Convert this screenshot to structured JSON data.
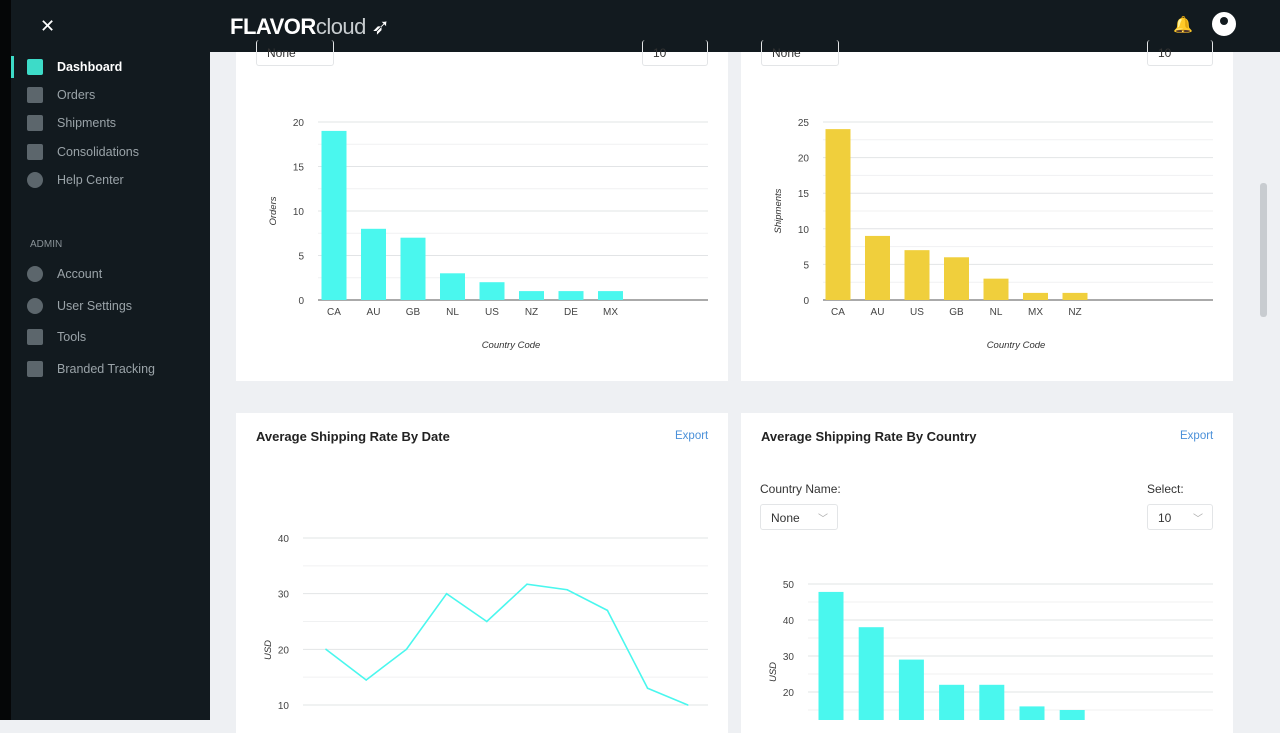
{
  "brand": {
    "logo_bold": "FLAVOR",
    "logo_light": "cloud"
  },
  "sidebar": {
    "items": [
      {
        "label": "Dashboard",
        "icon": "dashboard-icon",
        "active": true
      },
      {
        "label": "Orders",
        "icon": "download-icon"
      },
      {
        "label": "Shipments",
        "icon": "shipment-icon"
      },
      {
        "label": "Consolidations",
        "icon": "stack-icon"
      },
      {
        "label": "Help Center",
        "icon": "help-icon"
      }
    ],
    "admin_heading": "ADMIN",
    "admin_items": [
      {
        "label": "Account",
        "icon": "user-icon"
      },
      {
        "label": "User Settings",
        "icon": "gear-icon"
      },
      {
        "label": "Tools",
        "icon": "tools-icon"
      },
      {
        "label": "Branded Tracking",
        "icon": "tracking-icon"
      }
    ]
  },
  "panels": {
    "orders": {
      "filter_value": "None",
      "select_value": "10"
    },
    "shipments": {
      "filter_value": "None",
      "select_value": "10"
    },
    "rate_by_date": {
      "title": "Average Shipping Rate By Date",
      "export": "Export"
    },
    "rate_by_country": {
      "title": "Average Shipping Rate By Country",
      "export": "Export",
      "country_label": "Country Name:",
      "country_value": "None",
      "select_label": "Select:",
      "select_value": "10"
    }
  },
  "colors": {
    "accent": "#3ddbc8",
    "cyan": "#4af7ee",
    "yellow": "#f0cf3c"
  },
  "chart_data": [
    {
      "type": "bar",
      "categories": [
        "CA",
        "AU",
        "GB",
        "NL",
        "US",
        "NZ",
        "DE",
        "MX"
      ],
      "values": [
        19,
        8,
        7,
        3,
        2,
        1,
        1,
        1
      ],
      "xlabel": "Country Code",
      "ylabel": "Orders",
      "ylim": [
        0,
        20
      ],
      "yticks": [
        0,
        5,
        10,
        15,
        20
      ],
      "grid": true,
      "color": "#4af7ee"
    },
    {
      "type": "bar",
      "categories": [
        "CA",
        "AU",
        "US",
        "GB",
        "NL",
        "MX",
        "NZ"
      ],
      "values": [
        24,
        9,
        7,
        6,
        3,
        1,
        1
      ],
      "xlabel": "Country Code",
      "ylabel": "Shipments",
      "ylim": [
        0,
        25
      ],
      "yticks": [
        0,
        5,
        10,
        15,
        20,
        25
      ],
      "grid": true,
      "color": "#f0cf3c"
    },
    {
      "type": "line",
      "values": [
        20,
        14.5,
        20,
        30,
        25,
        31.7,
        30.7,
        27,
        13,
        10
      ],
      "ylabel": "USD",
      "yticks": [
        10,
        20,
        30,
        40
      ],
      "grid": true,
      "color": "#4af7ee"
    },
    {
      "type": "bar",
      "values": [
        47.8,
        38,
        29,
        22,
        22,
        16,
        15
      ],
      "ylabel": "USD",
      "yticks": [
        20,
        30,
        40,
        50
      ],
      "grid": true,
      "color": "#4af7ee"
    }
  ]
}
